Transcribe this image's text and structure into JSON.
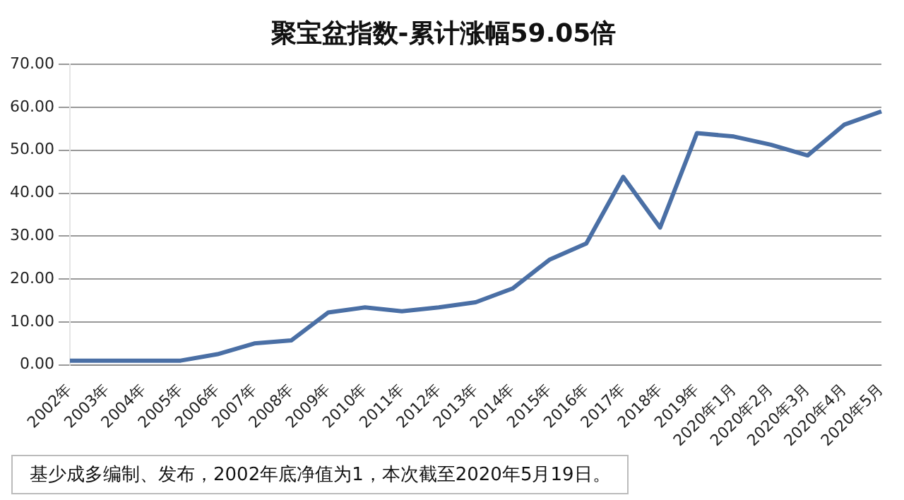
{
  "chart_data": {
    "type": "line",
    "title": "聚宝盆指数-累计涨幅59.05倍",
    "categories": [
      "2002年",
      "2003年",
      "2004年",
      "2005年",
      "2006年",
      "2007年",
      "2008年",
      "2009年",
      "2010年",
      "2011年",
      "2012年",
      "2013年",
      "2014年",
      "2015年",
      "2016年",
      "2017年",
      "2018年",
      "2019年",
      "2020年1月",
      "2020年2月",
      "2020年3月",
      "2020年4月",
      "2020年5月"
    ],
    "series": [
      {
        "color": "#4a6fa5",
        "values": [
          1,
          1,
          1,
          1,
          2.5,
          5,
          5.7,
          12.2,
          13.4,
          12.5,
          13.4,
          14.6,
          17.8,
          24.5,
          28.3,
          43.8,
          32,
          54,
          53.2,
          51.3,
          48.8,
          56,
          59.05
        ]
      }
    ],
    "ylim": [
      0,
      70
    ],
    "yticks": [
      {
        "value": 0,
        "label": "0.00"
      },
      {
        "value": 10,
        "label": "10.00"
      },
      {
        "value": 20,
        "label": "20.00"
      },
      {
        "value": 30,
        "label": "30.00"
      },
      {
        "value": 40,
        "label": "40.00"
      },
      {
        "value": 50,
        "label": "50.00"
      },
      {
        "value": 60,
        "label": "60.00"
      },
      {
        "value": 70,
        "label": "70.00"
      }
    ],
    "grid": "y",
    "marker": "none",
    "line_style": "solid",
    "legend": false,
    "annotations": [
      "基少成多编制、发布，2002年底净值为1，本次截至2020年5月19日。"
    ]
  }
}
